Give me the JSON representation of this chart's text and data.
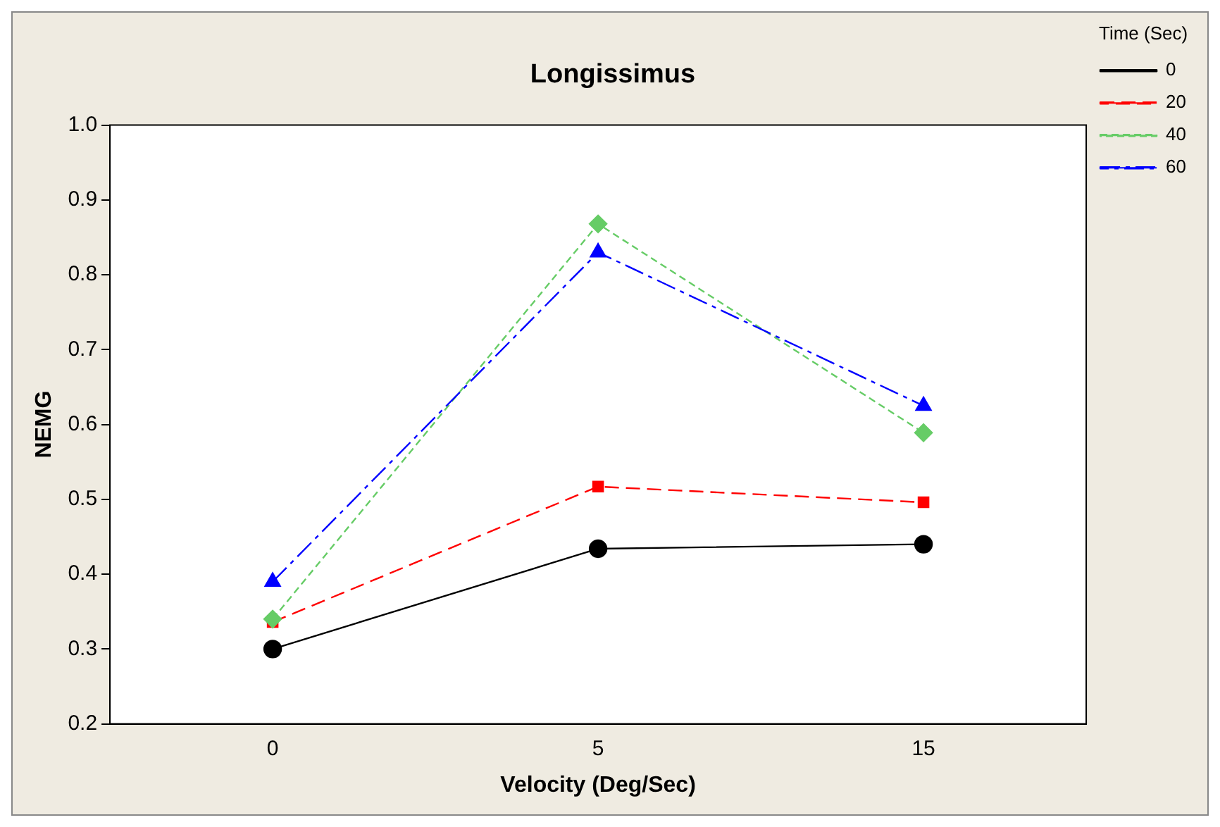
{
  "chart_data": {
    "type": "line",
    "title": "Longissimus",
    "xlabel": "Velocity (Deg/Sec)",
    "ylabel": "NEMG",
    "legend_title": "Time (Sec)",
    "categories": [
      "0",
      "5",
      "15"
    ],
    "series": [
      {
        "name": "0",
        "color": "#000000",
        "values": [
          0.3,
          0.434,
          0.44
        ],
        "marker": "circle",
        "line_style": "solid"
      },
      {
        "name": "20",
        "color": "#ff0000",
        "values": [
          0.336,
          0.517,
          0.496
        ],
        "marker": "square",
        "line_style": "dashed"
      },
      {
        "name": "40",
        "color": "#66cc66",
        "values": [
          0.34,
          0.868,
          0.589
        ],
        "marker": "diamond",
        "line_style": "dotted"
      },
      {
        "name": "60",
        "color": "#0000ff",
        "values": [
          0.39,
          0.83,
          0.625
        ],
        "marker": "triangle",
        "line_style": "dashdot"
      }
    ],
    "ylim": [
      0.2,
      1.0
    ],
    "yticks": [
      {
        "value": 0.2,
        "label": "0.2"
      },
      {
        "value": 0.3,
        "label": "0.3"
      },
      {
        "value": 0.4,
        "label": "0.4"
      },
      {
        "value": 0.5,
        "label": "0.5"
      },
      {
        "value": 0.6,
        "label": "0.6"
      },
      {
        "value": 0.7,
        "label": "0.7"
      },
      {
        "value": 0.8,
        "label": "0.8"
      },
      {
        "value": 0.9,
        "label": "0.9"
      },
      {
        "value": 1.0,
        "label": "1.0"
      }
    ],
    "grid": false,
    "legend": "right"
  }
}
